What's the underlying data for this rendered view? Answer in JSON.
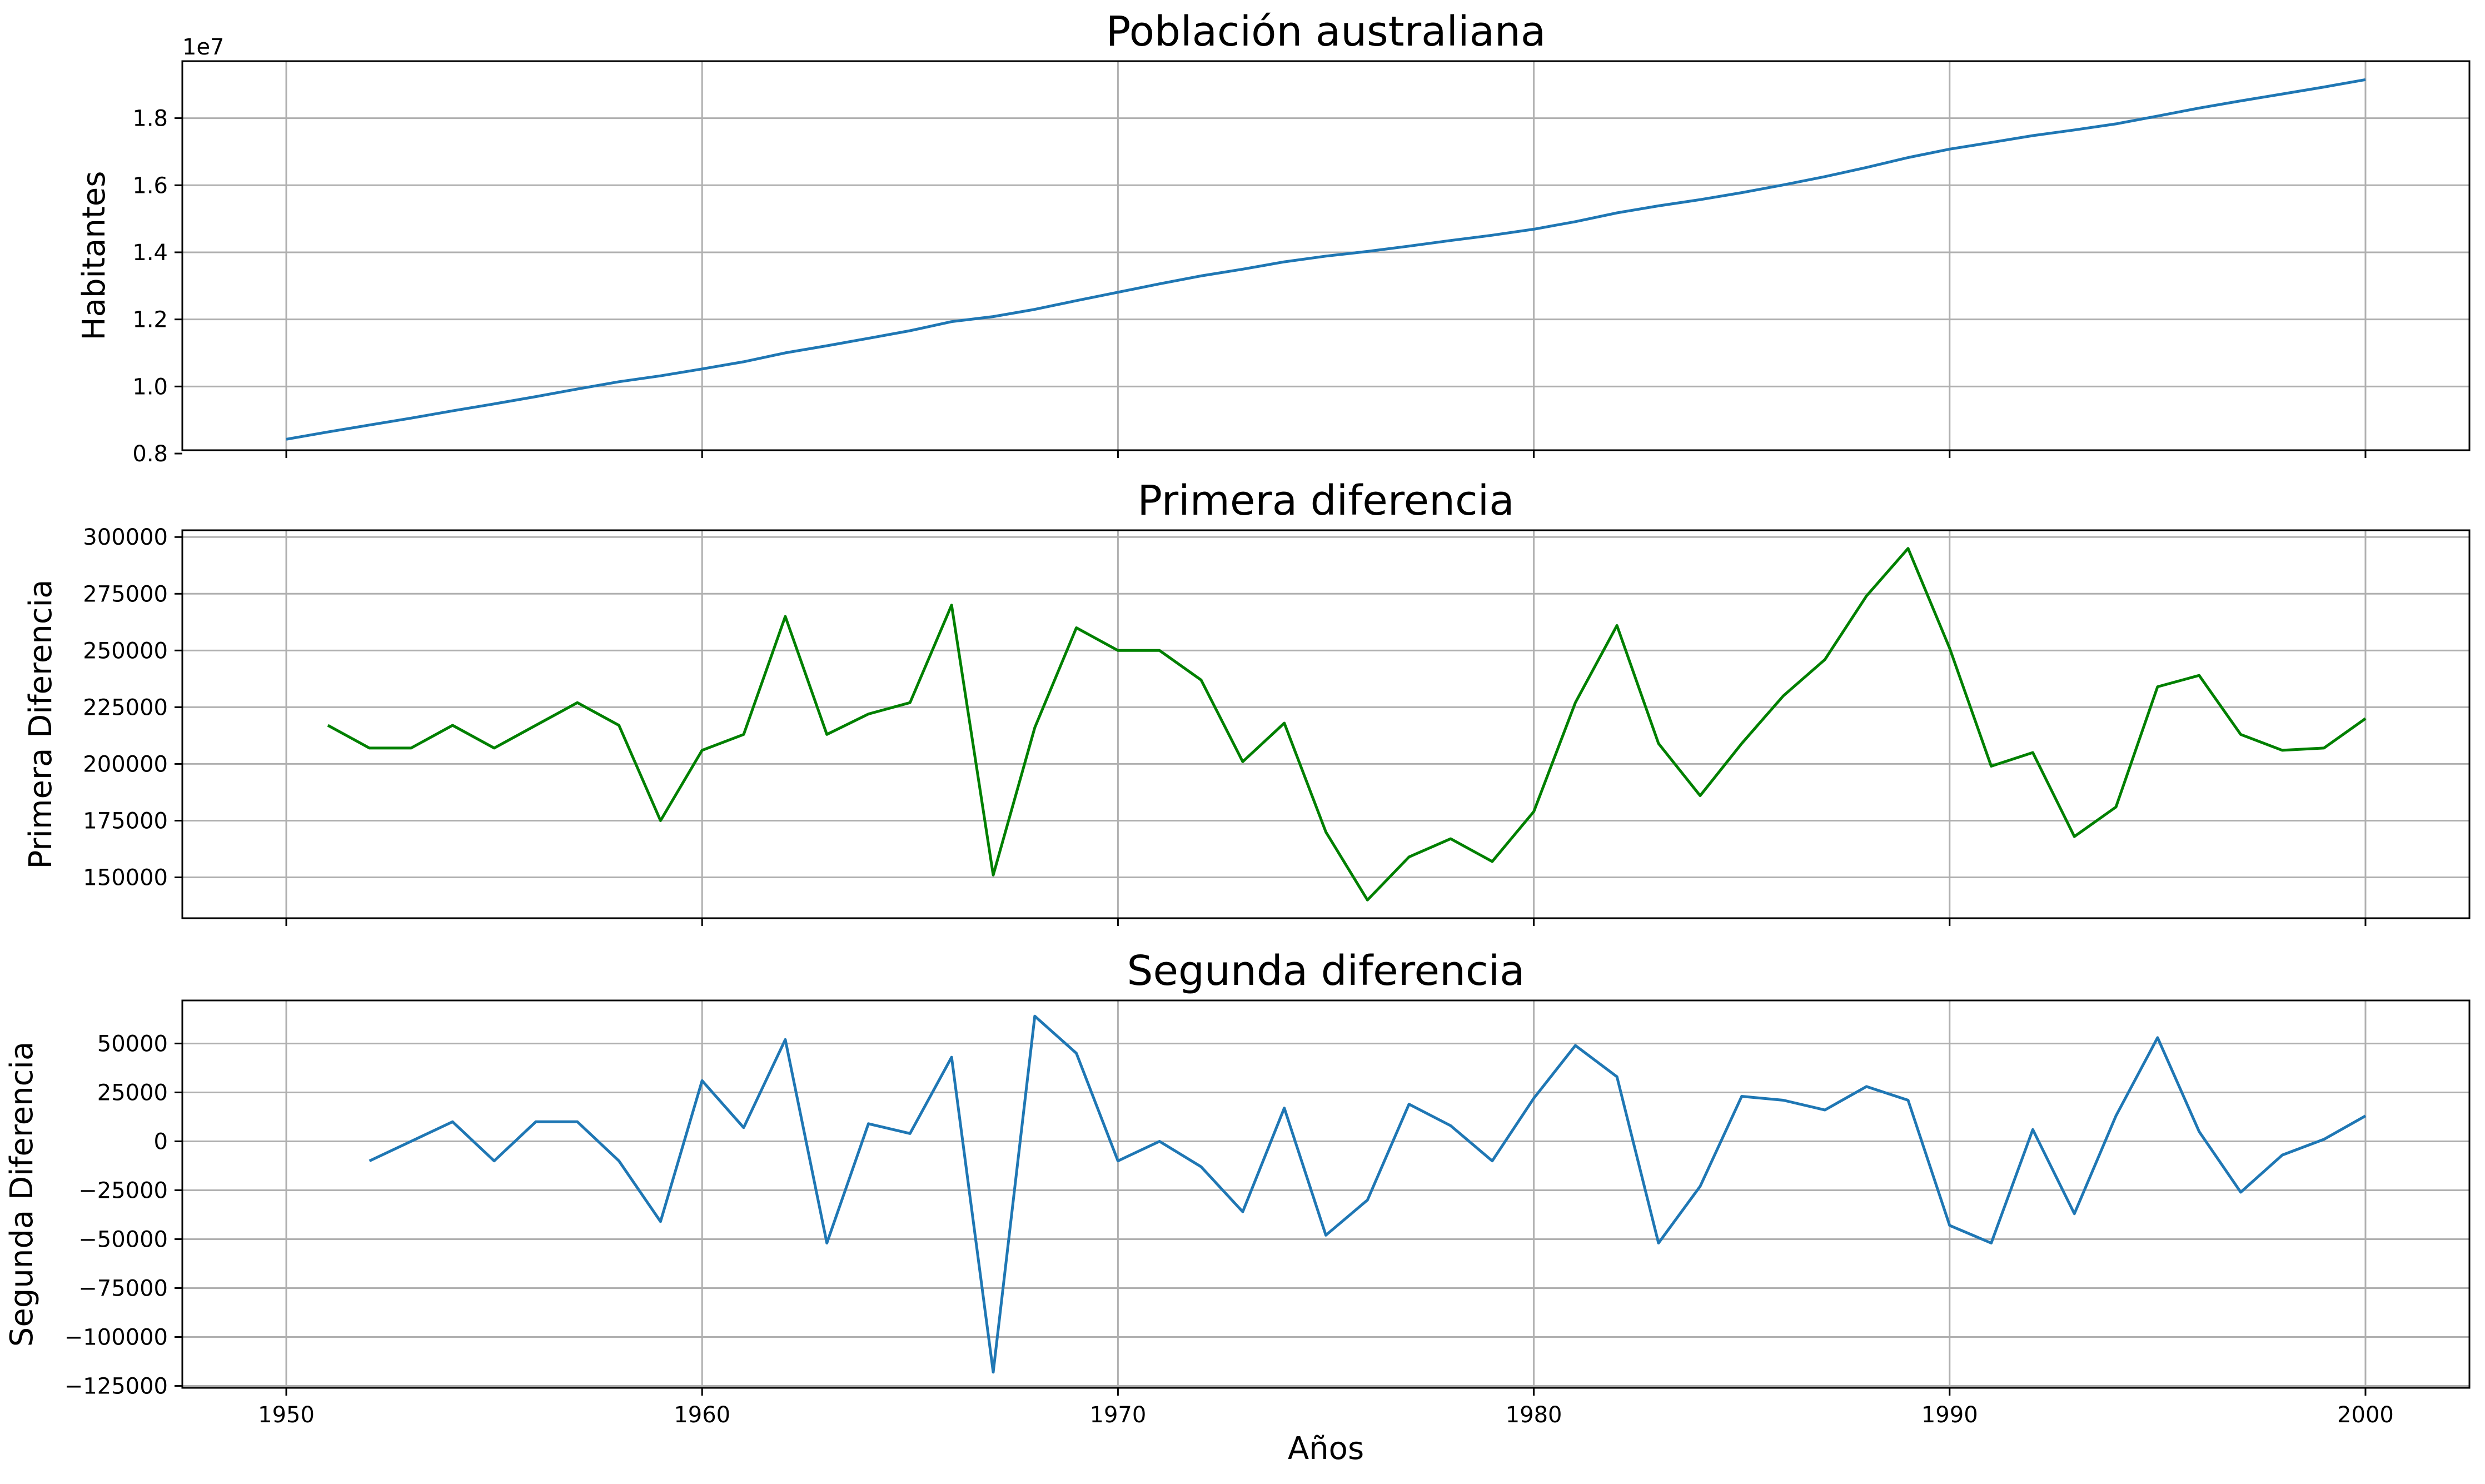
{
  "chart_data": [
    {
      "type": "line",
      "title": "Población australiana",
      "xlabel": "",
      "ylabel": "Habitantes",
      "offset_text": "1e7",
      "grid": true,
      "xlim": [
        1947.5,
        2002.5
      ],
      "ylim": [
        8.1,
        19.7
      ],
      "yticks": [
        8.0,
        10.0,
        12.0,
        14.0,
        16.0,
        18.0
      ],
      "ytick_labels": [
        "0.8",
        "1.0",
        "1.2",
        "1.4",
        "1.6",
        "1.8"
      ],
      "xticks": [
        1950,
        1960,
        1970,
        1980,
        1990,
        2000
      ],
      "xtick_labels": [
        "",
        "",
        "",
        "",
        "",
        ""
      ],
      "y_display_scale": 1000000,
      "color": "#1f77b4",
      "series": [
        {
          "x": [
            1950,
            1951,
            1952,
            1953,
            1954,
            1955,
            1956,
            1957,
            1958,
            1959,
            1960,
            1961,
            1962,
            1963,
            1964,
            1965,
            1966,
            1967,
            1968,
            1969,
            1970,
            1971,
            1972,
            1973,
            1974,
            1975,
            1976,
            1977,
            1978,
            1979,
            1980,
            1981,
            1982,
            1983,
            1984,
            1985,
            1986,
            1987,
            1988,
            1989,
            1990,
            1991,
            1992,
            1993,
            1994,
            1995,
            1996,
            1997,
            1998,
            1999,
            2000
          ],
          "y": [
            8426000,
            8643000,
            8850000,
            9057000,
            9274000,
            9481000,
            9698000,
            9925000,
            10142000,
            10317000,
            10523000,
            10736000,
            11001000,
            11214000,
            11436000,
            11663000,
            11933000,
            12084000,
            12300000,
            12560000,
            12810000,
            13060000,
            13297000,
            13498000,
            13716000,
            13886000,
            14026000,
            14185000,
            14352000,
            14509000,
            14688000,
            14915000,
            15176000,
            15385000,
            15571000,
            15780000,
            16010000,
            16256000,
            16530000,
            16825000,
            17076000,
            17275000,
            17480000,
            17648000,
            17829000,
            18063000,
            18302000,
            18515000,
            18721000,
            18928000,
            19148000
          ]
        }
      ]
    },
    {
      "type": "line",
      "title": "Primera diferencia",
      "xlabel": "",
      "ylabel": "Primera Diferencia",
      "grid": true,
      "xlim": [
        1947.5,
        2002.5
      ],
      "ylim": [
        132000,
        303000
      ],
      "yticks": [
        150000,
        175000,
        200000,
        225000,
        250000,
        275000,
        300000
      ],
      "ytick_labels": [
        "150000",
        "175000",
        "200000",
        "225000",
        "250000",
        "275000",
        "300000"
      ],
      "xticks": [
        1950,
        1960,
        1970,
        1980,
        1990,
        2000
      ],
      "xtick_labels": [
        "",
        "",
        "",
        "",
        "",
        ""
      ],
      "color": "#008000",
      "series": [
        {
          "x": [
            1951,
            1952,
            1953,
            1954,
            1955,
            1956,
            1957,
            1958,
            1959,
            1960,
            1961,
            1962,
            1963,
            1964,
            1965,
            1966,
            1967,
            1968,
            1969,
            1970,
            1971,
            1972,
            1973,
            1974,
            1975,
            1976,
            1977,
            1978,
            1979,
            1980,
            1981,
            1982,
            1983,
            1984,
            1985,
            1986,
            1987,
            1988,
            1989,
            1990,
            1991,
            1992,
            1993,
            1994,
            1995,
            1996,
            1997,
            1998,
            1999,
            2000
          ],
          "y": [
            217000,
            207000,
            207000,
            217000,
            207000,
            217000,
            227000,
            217000,
            175000,
            206000,
            213000,
            265000,
            213000,
            222000,
            227000,
            270000,
            151000,
            216000,
            260000,
            250000,
            250000,
            237000,
            201000,
            218000,
            170000,
            140000,
            159000,
            167000,
            157000,
            179000,
            227000,
            261000,
            209000,
            186000,
            209000,
            230000,
            246000,
            274000,
            295000,
            251000,
            199000,
            205000,
            168000,
            181000,
            234000,
            239000,
            213000,
            206000,
            207000,
            220000
          ]
        }
      ]
    },
    {
      "type": "line",
      "title": "Segunda diferencia",
      "xlabel": "Años",
      "ylabel": "Segunda Diferencia",
      "grid": true,
      "xlim": [
        1947.5,
        2002.5
      ],
      "ylim": [
        -126000,
        72000
      ],
      "yticks": [
        -125000,
        -100000,
        -75000,
        -50000,
        -25000,
        0,
        25000,
        50000
      ],
      "ytick_labels": [
        "−125000",
        "−100000",
        "−75000",
        "−50000",
        "−25000",
        "0",
        "25000",
        "50000"
      ],
      "xticks": [
        1950,
        1960,
        1970,
        1980,
        1990,
        2000
      ],
      "xtick_labels": [
        "1950",
        "1960",
        "1970",
        "1980",
        "1990",
        "2000"
      ],
      "color": "#1f77b4",
      "series": [
        {
          "x": [
            1952,
            1953,
            1954,
            1955,
            1956,
            1957,
            1958,
            1959,
            1960,
            1961,
            1962,
            1963,
            1964,
            1965,
            1966,
            1967,
            1968,
            1969,
            1970,
            1971,
            1972,
            1973,
            1974,
            1975,
            1976,
            1977,
            1978,
            1979,
            1980,
            1981,
            1982,
            1983,
            1984,
            1985,
            1986,
            1987,
            1988,
            1989,
            1990,
            1991,
            1992,
            1993,
            1994,
            1995,
            1996,
            1997,
            1998,
            1999,
            2000
          ],
          "y": [
            -10000,
            0,
            10000,
            -10000,
            10000,
            10000,
            -10000,
            -41000,
            31000,
            7000,
            52000,
            -52000,
            9000,
            4000,
            43000,
            -118000,
            64000,
            45000,
            -10000,
            0,
            -13000,
            -36000,
            17000,
            -48000,
            -30000,
            19000,
            8000,
            -10000,
            22000,
            49000,
            33000,
            -52000,
            -23000,
            23000,
            21000,
            16000,
            28000,
            21000,
            -43000,
            -52000,
            6000,
            -37000,
            13000,
            53000,
            5000,
            -26000,
            -7000,
            1000,
            13000
          ]
        }
      ]
    }
  ]
}
